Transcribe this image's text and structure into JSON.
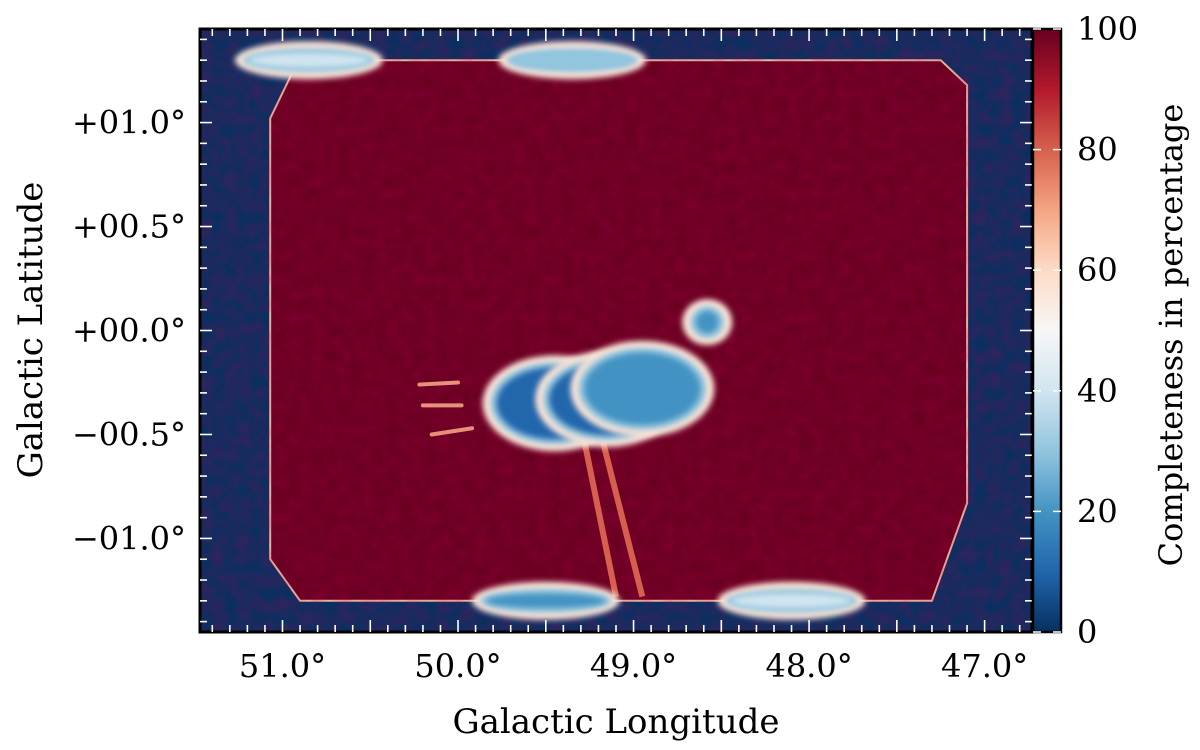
{
  "chart_data": {
    "type": "heatmap",
    "xlabel": "Galactic Longitude",
    "ylabel": "Galactic Latitude",
    "xlim": [
      51.47,
      46.73
    ],
    "ylim": [
      -1.45,
      1.45
    ],
    "x_ticks": [
      51.0,
      50.0,
      49.0,
      48.0,
      47.0
    ],
    "x_tick_labels": [
      "51.0°",
      "50.0°",
      "49.0°",
      "48.0°",
      "47.0°"
    ],
    "y_ticks": [
      1.0,
      0.5,
      0.0,
      -0.5,
      -1.0
    ],
    "y_tick_labels": [
      "+01.0°",
      "+00.5°",
      "+00.0°",
      "−00.5°",
      "−01.0°"
    ],
    "colorbar": {
      "label": "Completeness in percentage",
      "range": [
        0,
        100
      ],
      "ticks": [
        0,
        20,
        40,
        60,
        80,
        100
      ],
      "tick_labels": [
        "0",
        "20",
        "40",
        "60",
        "80",
        "100"
      ],
      "colormap": "RdBu_r",
      "stops": [
        "#053061",
        "#2166ac",
        "#4393c3",
        "#92c5de",
        "#d1e5f0",
        "#f7f7f7",
        "#fddbc7",
        "#f4a582",
        "#d6604d",
        "#b2182b",
        "#67001f"
      ]
    },
    "field": {
      "background_value": 0,
      "survey_value": 100,
      "survey_polygon": [
        [
          51.07,
          1.02
        ],
        [
          50.91,
          1.3
        ],
        [
          47.25,
          1.3
        ],
        [
          47.1,
          1.18
        ],
        [
          47.1,
          -0.83
        ],
        [
          47.3,
          -1.3
        ],
        [
          50.9,
          -1.3
        ],
        [
          51.07,
          -1.1
        ]
      ],
      "low_completeness_regions": [
        {
          "lon": 49.45,
          "lat": -0.35,
          "value": 10
        },
        {
          "lon": 49.15,
          "lat": -0.33,
          "value": 12
        },
        {
          "lon": 48.95,
          "lat": -0.28,
          "value": 15
        },
        {
          "lon": 48.58,
          "lat": 0.04,
          "value": 15
        },
        {
          "lon": 50.85,
          "lat": 1.3,
          "value": 40
        },
        {
          "lon": 49.35,
          "lat": 1.3,
          "value": 30
        },
        {
          "lon": 49.5,
          "lat": -1.3,
          "value": 20
        },
        {
          "lon": 48.1,
          "lat": -1.3,
          "value": 35
        }
      ]
    }
  }
}
